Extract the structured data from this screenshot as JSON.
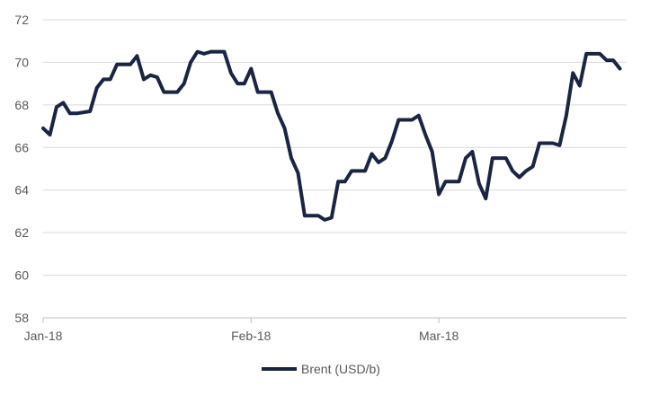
{
  "chart_data": {
    "type": "line",
    "title": "",
    "xlabel": "",
    "ylabel": "",
    "ylim": [
      58,
      72
    ],
    "y_ticks": [
      58,
      60,
      62,
      64,
      66,
      68,
      70,
      72
    ],
    "x_tick_labels": [
      "Jan-18",
      "Feb-18",
      "Mar-18"
    ],
    "x_ticks_dates": [
      "2018-01-01",
      "2018-02-01",
      "2018-03-01"
    ],
    "x_range": [
      "2018-01-01",
      "2018-03-29"
    ],
    "grid": true,
    "legend_position": "bottom",
    "series": [
      {
        "name": "Brent (USD/b)",
        "color": "#1b2441",
        "points": [
          [
            "2018-01-01",
            66.9
          ],
          [
            "2018-01-02",
            66.6
          ],
          [
            "2018-01-03",
            67.9
          ],
          [
            "2018-01-04",
            68.1
          ],
          [
            "2018-01-05",
            67.6
          ],
          [
            "2018-01-06",
            67.6
          ],
          [
            "2018-01-08",
            67.7
          ],
          [
            "2018-01-09",
            68.8
          ],
          [
            "2018-01-10",
            69.2
          ],
          [
            "2018-01-11",
            69.2
          ],
          [
            "2018-01-12",
            69.9
          ],
          [
            "2018-01-14",
            69.9
          ],
          [
            "2018-01-15",
            70.3
          ],
          [
            "2018-01-16",
            69.2
          ],
          [
            "2018-01-17",
            69.4
          ],
          [
            "2018-01-18",
            69.3
          ],
          [
            "2018-01-19",
            68.6
          ],
          [
            "2018-01-21",
            68.6
          ],
          [
            "2018-01-22",
            69.0
          ],
          [
            "2018-01-23",
            70.0
          ],
          [
            "2018-01-24",
            70.5
          ],
          [
            "2018-01-25",
            70.4
          ],
          [
            "2018-01-26",
            70.5
          ],
          [
            "2018-01-28",
            70.5
          ],
          [
            "2018-01-29",
            69.5
          ],
          [
            "2018-01-30",
            69.0
          ],
          [
            "2018-01-31",
            69.0
          ],
          [
            "2018-02-01",
            69.7
          ],
          [
            "2018-02-02",
            68.6
          ],
          [
            "2018-02-04",
            68.6
          ],
          [
            "2018-02-05",
            67.6
          ],
          [
            "2018-02-06",
            66.9
          ],
          [
            "2018-02-07",
            65.5
          ],
          [
            "2018-02-08",
            64.8
          ],
          [
            "2018-02-09",
            62.8
          ],
          [
            "2018-02-11",
            62.8
          ],
          [
            "2018-02-12",
            62.6
          ],
          [
            "2018-02-13",
            62.7
          ],
          [
            "2018-02-14",
            64.4
          ],
          [
            "2018-02-15",
            64.4
          ],
          [
            "2018-02-16",
            64.9
          ],
          [
            "2018-02-18",
            64.9
          ],
          [
            "2018-02-19",
            65.7
          ],
          [
            "2018-02-20",
            65.3
          ],
          [
            "2018-02-21",
            65.5
          ],
          [
            "2018-02-22",
            66.3
          ],
          [
            "2018-02-23",
            67.3
          ],
          [
            "2018-02-25",
            67.3
          ],
          [
            "2018-02-26",
            67.5
          ],
          [
            "2018-02-27",
            66.6
          ],
          [
            "2018-02-28",
            65.8
          ],
          [
            "2018-03-01",
            63.8
          ],
          [
            "2018-03-02",
            64.4
          ],
          [
            "2018-03-04",
            64.4
          ],
          [
            "2018-03-05",
            65.5
          ],
          [
            "2018-03-06",
            65.8
          ],
          [
            "2018-03-07",
            64.3
          ],
          [
            "2018-03-08",
            63.6
          ],
          [
            "2018-03-09",
            65.5
          ],
          [
            "2018-03-11",
            65.5
          ],
          [
            "2018-03-12",
            64.9
          ],
          [
            "2018-03-13",
            64.6
          ],
          [
            "2018-03-14",
            64.9
          ],
          [
            "2018-03-15",
            65.1
          ],
          [
            "2018-03-16",
            66.2
          ],
          [
            "2018-03-18",
            66.2
          ],
          [
            "2018-03-19",
            66.1
          ],
          [
            "2018-03-20",
            67.5
          ],
          [
            "2018-03-21",
            69.5
          ],
          [
            "2018-03-22",
            68.9
          ],
          [
            "2018-03-23",
            70.4
          ],
          [
            "2018-03-25",
            70.4
          ],
          [
            "2018-03-26",
            70.1
          ],
          [
            "2018-03-27",
            70.1
          ],
          [
            "2018-03-28",
            69.7
          ]
        ]
      }
    ]
  }
}
